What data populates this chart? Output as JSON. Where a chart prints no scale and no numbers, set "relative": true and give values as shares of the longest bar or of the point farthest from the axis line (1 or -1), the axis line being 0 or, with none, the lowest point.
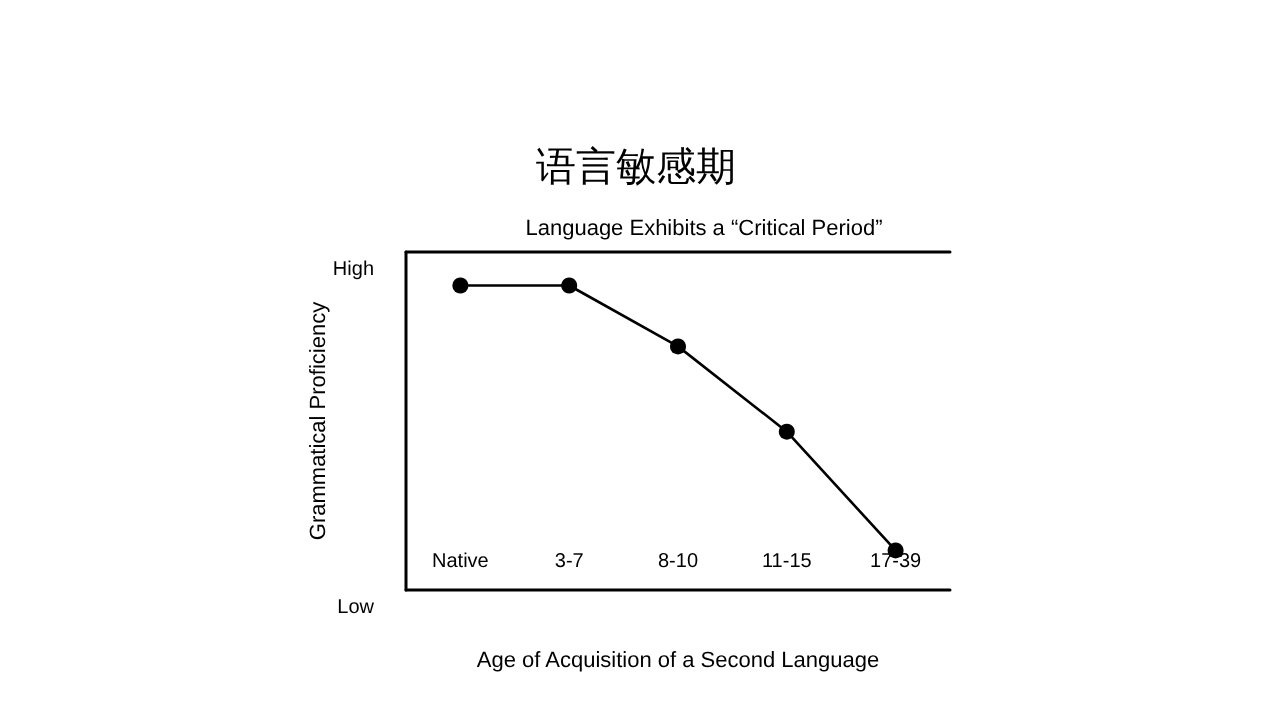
{
  "chart_data": {
    "type": "line",
    "title": "语言敏感期",
    "subtitle": "Language Exhibits a “Critical Period”",
    "xlabel": "Age of Acquisition of a Second Language",
    "ylabel": "Grammatical Proficiency",
    "categories": [
      "Native",
      "3-7",
      "8-10",
      "11-15",
      "17-39"
    ],
    "series": [
      {
        "color": "#000000",
        "values": [
          1,
          1,
          0.8,
          0.52,
          0.13
        ]
      }
    ],
    "relative": true,
    "annotations": [
      "High",
      "Low"
    ],
    "grid": false,
    "marker": "circle",
    "line_style": "solid"
  }
}
